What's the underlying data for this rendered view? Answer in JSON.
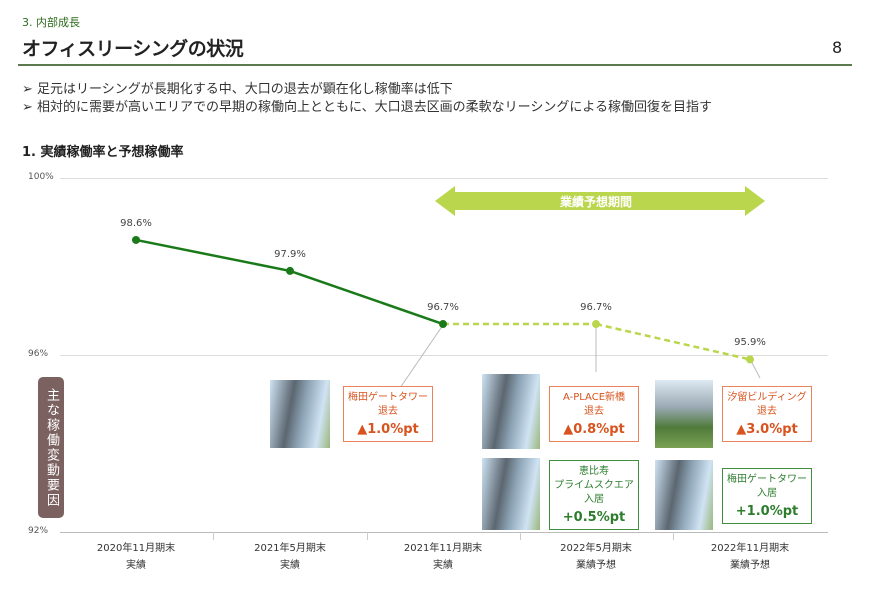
{
  "header": {
    "section": "3. 内部成長",
    "title": "オフィスリーシングの状況",
    "page_number": "8"
  },
  "bullets": [
    "➢ 足元はリーシングが長期化する中、大口の退去が顕在化し稼働率は低下",
    "➢ 相対的に需要が高いエリアでの早期の稼働向上とともに、大口退去区画の柔軟なリーシングによる稼働回復を目指す"
  ],
  "subtitle": "1.  実績稼働率と予想稼働率",
  "forecast_banner": "業績予想期間",
  "factor_label": "主な稼働変動要因",
  "colors": {
    "actual": "#1a7a1a",
    "forecast": "#b9d64c",
    "decrease": "#d8531e",
    "increase": "#2d7d2d"
  },
  "chart_data": {
    "type": "line",
    "categories": [
      [
        "2020年11月期末",
        "実績"
      ],
      [
        "2021年5月期末",
        "実績"
      ],
      [
        "2021年11月期末",
        "実績"
      ],
      [
        "2022年5月期末",
        "業績予想"
      ],
      [
        "2022年11月期末",
        "業績予想"
      ]
    ],
    "values": [
      98.6,
      97.9,
      96.7,
      96.7,
      95.9
    ],
    "value_labels": [
      "98.6%",
      "97.9%",
      "96.7%",
      "96.7%",
      "95.9%"
    ],
    "ylim": [
      92,
      100
    ],
    "yticks": [
      "100%",
      "96%",
      "92%"
    ],
    "actual_count": 3,
    "grid": true
  },
  "factors": [
    {
      "name": "梅田ゲートタワー",
      "action": "退去",
      "value": "▲1.0%pt",
      "kind": "decrease"
    },
    {
      "name": "A-PLACE新橋",
      "action": "退去",
      "value": "▲0.8%pt",
      "kind": "decrease"
    },
    {
      "name": "汐留ビルディング",
      "action": "退去",
      "value": "▲3.0%pt",
      "kind": "decrease"
    },
    {
      "name": "恵比寿\nプライムスクエア",
      "action": "入居",
      "value": "+0.5%pt",
      "kind": "increase"
    },
    {
      "name": "梅田ゲートタワー",
      "action": "入居",
      "value": "+1.0%pt",
      "kind": "increase"
    }
  ]
}
